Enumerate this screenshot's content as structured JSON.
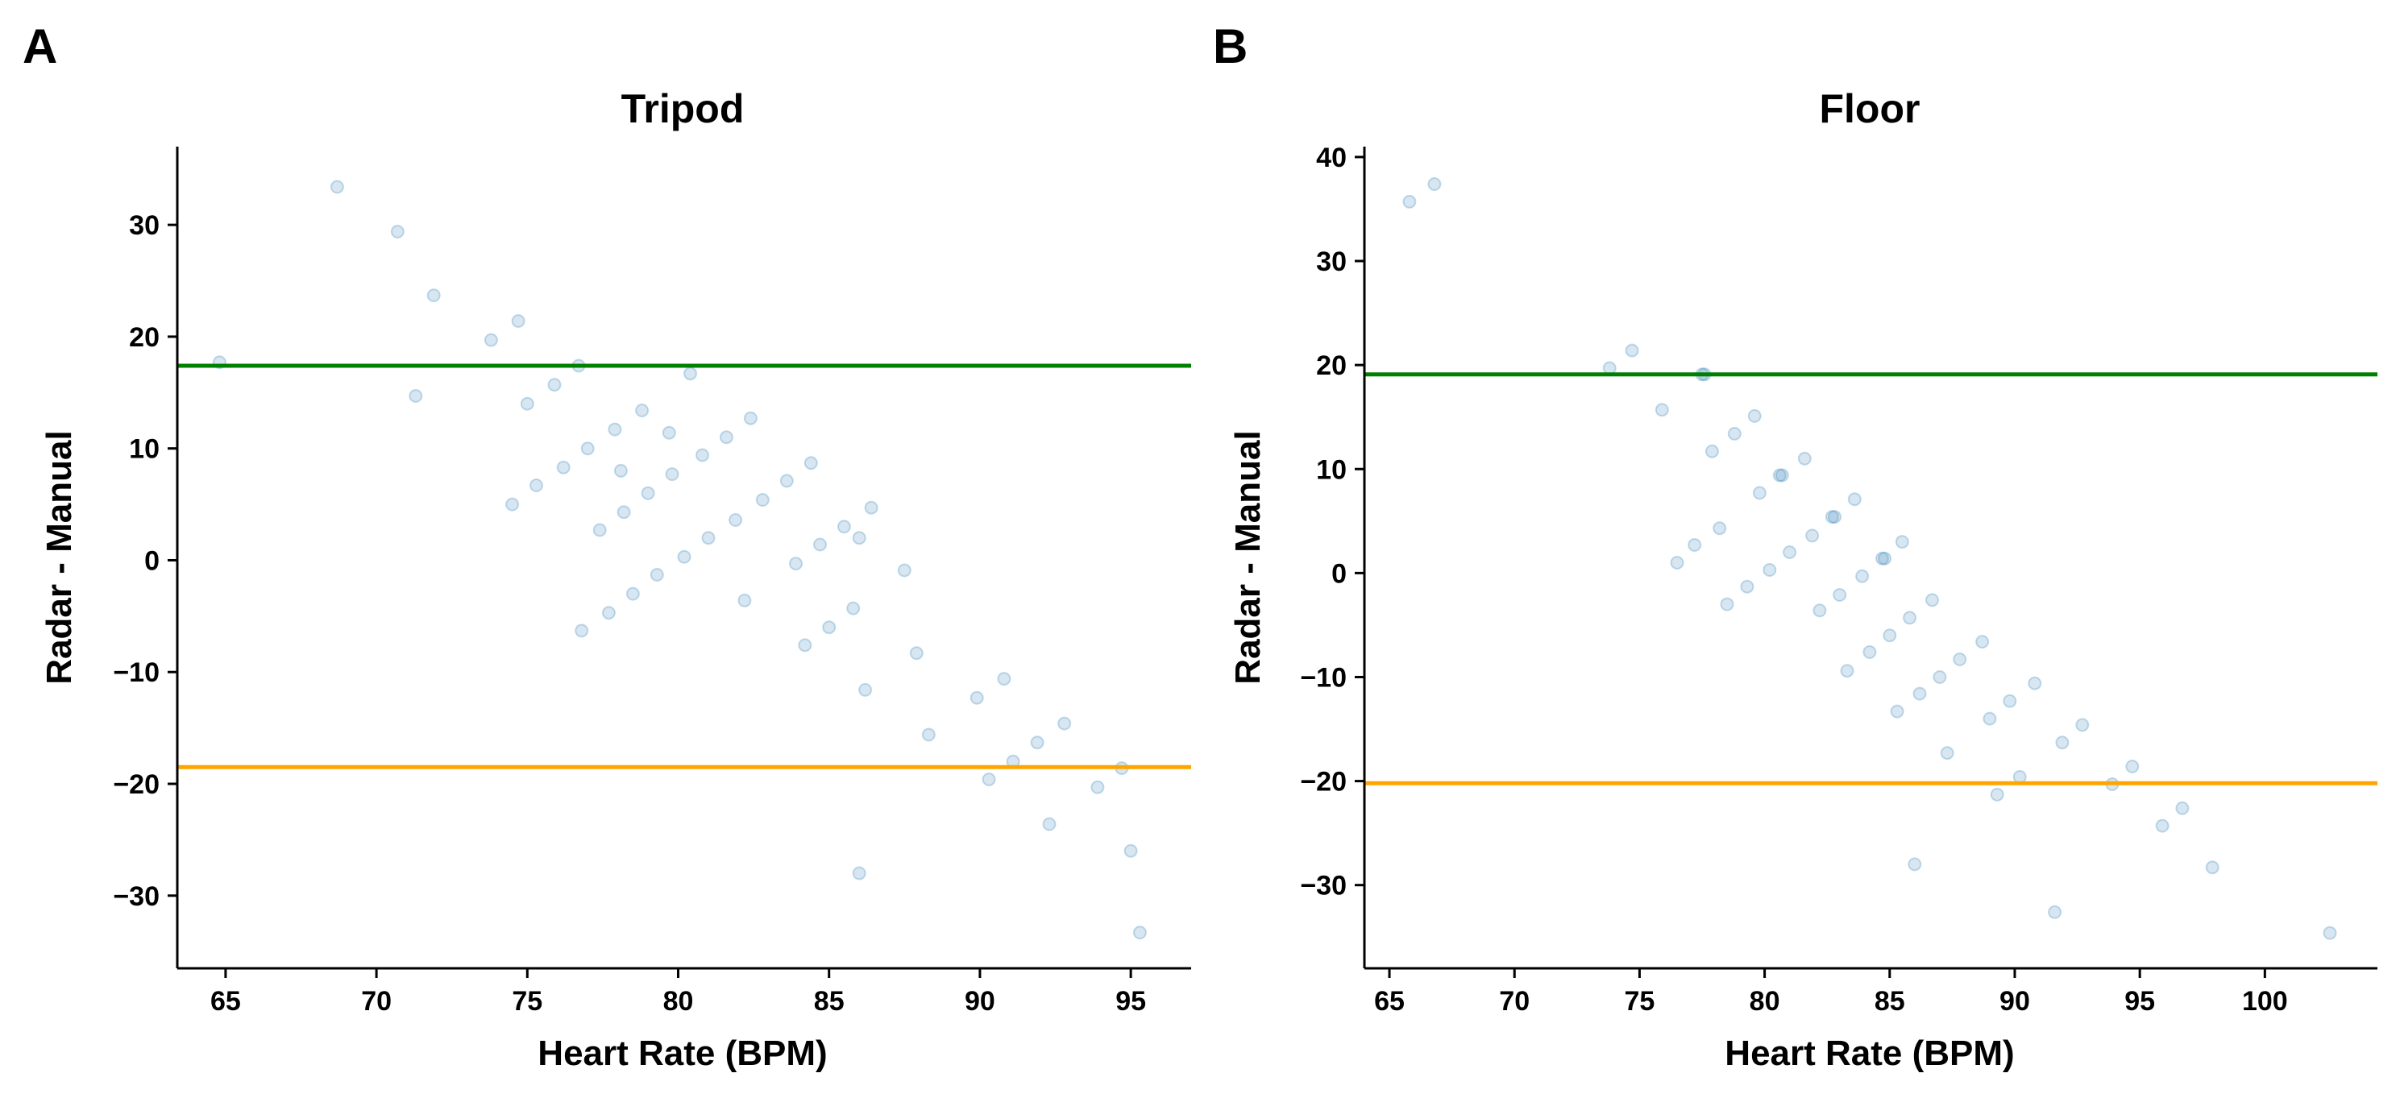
{
  "chart_data": [
    {
      "type": "scatter",
      "panel": "A",
      "title": "Tripod",
      "xlabel": "Heart Rate (BPM)",
      "ylabel": "Radar - Manual",
      "xlim": [
        63.4,
        97.0
      ],
      "ylim": [
        -36.5,
        37.0
      ],
      "xticks": [
        65,
        70,
        75,
        80,
        85,
        90,
        95
      ],
      "yticks": [
        -30,
        -20,
        -10,
        0,
        10,
        20,
        30
      ],
      "hlines": [
        {
          "y": 17.4,
          "color": "#008000"
        },
        {
          "y": -18.5,
          "color": "#FFA500"
        }
      ],
      "point_color": "#1f77b4",
      "point_alpha": 0.18,
      "grid": false,
      "points": [
        [
          64.8,
          17.7
        ],
        [
          68.7,
          33.4
        ],
        [
          70.7,
          29.4
        ],
        [
          71.3,
          14.7
        ],
        [
          71.9,
          23.7
        ],
        [
          73.8,
          19.7
        ],
        [
          74.5,
          5.0
        ],
        [
          74.7,
          21.4
        ],
        [
          75.0,
          14.0
        ],
        [
          75.3,
          6.7
        ],
        [
          75.9,
          15.7
        ],
        [
          76.2,
          8.3
        ],
        [
          76.7,
          17.4
        ],
        [
          76.8,
          -6.3
        ],
        [
          77.0,
          10.0
        ],
        [
          77.4,
          2.7
        ],
        [
          77.7,
          -4.7
        ],
        [
          77.9,
          11.7
        ],
        [
          78.1,
          8.0
        ],
        [
          78.2,
          4.3
        ],
        [
          78.5,
          -3.0
        ],
        [
          78.8,
          13.4
        ],
        [
          79.0,
          6.0
        ],
        [
          79.3,
          -1.3
        ],
        [
          79.7,
          11.4
        ],
        [
          79.8,
          7.7
        ],
        [
          80.2,
          0.3
        ],
        [
          80.4,
          16.7
        ],
        [
          80.8,
          9.4
        ],
        [
          81.0,
          2.0
        ],
        [
          81.6,
          11.0
        ],
        [
          81.9,
          3.6
        ],
        [
          82.2,
          -3.6
        ],
        [
          82.4,
          12.7
        ],
        [
          82.8,
          5.4
        ],
        [
          83.6,
          7.1
        ],
        [
          83.9,
          -0.3
        ],
        [
          84.2,
          -7.6
        ],
        [
          84.4,
          8.7
        ],
        [
          84.7,
          1.4
        ],
        [
          85.0,
          -6.0
        ],
        [
          85.5,
          3.0
        ],
        [
          85.8,
          -4.3
        ],
        [
          86.0,
          -28.0
        ],
        [
          86.0,
          2.0
        ],
        [
          86.2,
          -11.6
        ],
        [
          86.4,
          4.7
        ],
        [
          87.5,
          -0.9
        ],
        [
          87.9,
          -8.3
        ],
        [
          88.3,
          -15.6
        ],
        [
          89.9,
          -12.3
        ],
        [
          90.3,
          -19.6
        ],
        [
          90.8,
          -10.6
        ],
        [
          91.1,
          -18.0
        ],
        [
          91.9,
          -16.3
        ],
        [
          92.3,
          -23.6
        ],
        [
          92.8,
          -14.6
        ],
        [
          93.9,
          -20.3
        ],
        [
          94.7,
          -18.6
        ],
        [
          95.0,
          -26.0
        ],
        [
          95.3,
          -33.3
        ]
      ]
    },
    {
      "type": "scatter",
      "panel": "B",
      "title": "Floor",
      "xlabel": "Heart Rate (BPM)",
      "ylabel": "Radar - Manual",
      "xlim": [
        64.0,
        104.5
      ],
      "ylim": [
        -38.0,
        41.0
      ],
      "xticks": [
        65,
        70,
        75,
        80,
        85,
        90,
        95,
        100
      ],
      "yticks": [
        -30,
        -20,
        -10,
        0,
        10,
        20,
        30,
        40
      ],
      "hlines": [
        {
          "y": 19.1,
          "color": "#008000"
        },
        {
          "y": -20.2,
          "color": "#FFA500"
        }
      ],
      "point_color": "#1f77b4",
      "point_alpha": 0.18,
      "grid": false,
      "points": [
        [
          65.8,
          35.7
        ],
        [
          66.8,
          37.4
        ],
        [
          73.8,
          19.7
        ],
        [
          74.7,
          21.4
        ],
        [
          75.9,
          15.7
        ],
        [
          76.5,
          1.0
        ],
        [
          77.2,
          2.7
        ],
        [
          77.5,
          19.1
        ],
        [
          77.6,
          19.1
        ],
        [
          77.9,
          11.7
        ],
        [
          78.2,
          4.3
        ],
        [
          78.5,
          -3.0
        ],
        [
          78.8,
          13.4
        ],
        [
          79.3,
          -1.3
        ],
        [
          79.6,
          15.1
        ],
        [
          79.8,
          7.7
        ],
        [
          80.2,
          0.3
        ],
        [
          80.6,
          9.4
        ],
        [
          80.7,
          9.4
        ],
        [
          81.0,
          2.0
        ],
        [
          81.6,
          11.0
        ],
        [
          81.9,
          3.6
        ],
        [
          82.2,
          -3.6
        ],
        [
          82.7,
          5.4
        ],
        [
          82.8,
          5.4
        ],
        [
          83.0,
          -2.1
        ],
        [
          83.3,
          -9.4
        ],
        [
          83.6,
          7.1
        ],
        [
          83.9,
          -0.3
        ],
        [
          84.2,
          -7.6
        ],
        [
          84.7,
          1.4
        ],
        [
          84.8,
          1.4
        ],
        [
          85.0,
          -6.0
        ],
        [
          85.3,
          -13.3
        ],
        [
          85.5,
          3.0
        ],
        [
          85.8,
          -4.3
        ],
        [
          86.0,
          -28.0
        ],
        [
          86.2,
          -11.6
        ],
        [
          86.7,
          -2.6
        ],
        [
          87.0,
          -10.0
        ],
        [
          87.3,
          -17.3
        ],
        [
          87.8,
          -8.3
        ],
        [
          88.7,
          -6.6
        ],
        [
          89.0,
          -14.0
        ],
        [
          89.3,
          -21.3
        ],
        [
          89.8,
          -12.3
        ],
        [
          90.2,
          -19.6
        ],
        [
          90.8,
          -10.6
        ],
        [
          91.6,
          -32.6
        ],
        [
          91.9,
          -16.3
        ],
        [
          92.7,
          -14.6
        ],
        [
          93.9,
          -20.3
        ],
        [
          94.7,
          -18.6
        ],
        [
          95.9,
          -24.3
        ],
        [
          96.7,
          -22.6
        ],
        [
          97.9,
          -28.3
        ],
        [
          102.6,
          -34.6
        ]
      ]
    }
  ]
}
